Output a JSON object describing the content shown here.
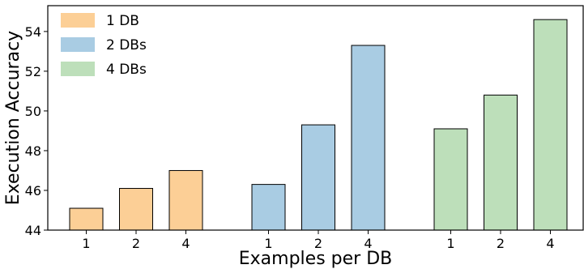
{
  "chart_data": {
    "type": "bar",
    "xlabel": "Examples per DB",
    "ylabel": "Execution Accuracy",
    "ylim": [
      44,
      55.3
    ],
    "yticks": [
      44,
      46,
      48,
      50,
      52,
      54
    ],
    "grid": false,
    "legend_position": "top-left",
    "categories": [
      "1",
      "2",
      "4"
    ],
    "series": [
      {
        "name": "1 DB",
        "color": "#fccf96",
        "values": [
          45.1,
          46.1,
          47.0
        ]
      },
      {
        "name": "2 DBs",
        "color": "#a9cce3",
        "values": [
          46.3,
          49.3,
          53.3
        ]
      },
      {
        "name": "4 DBs",
        "color": "#bddfba",
        "values": [
          49.1,
          50.8,
          54.6
        ]
      }
    ]
  }
}
